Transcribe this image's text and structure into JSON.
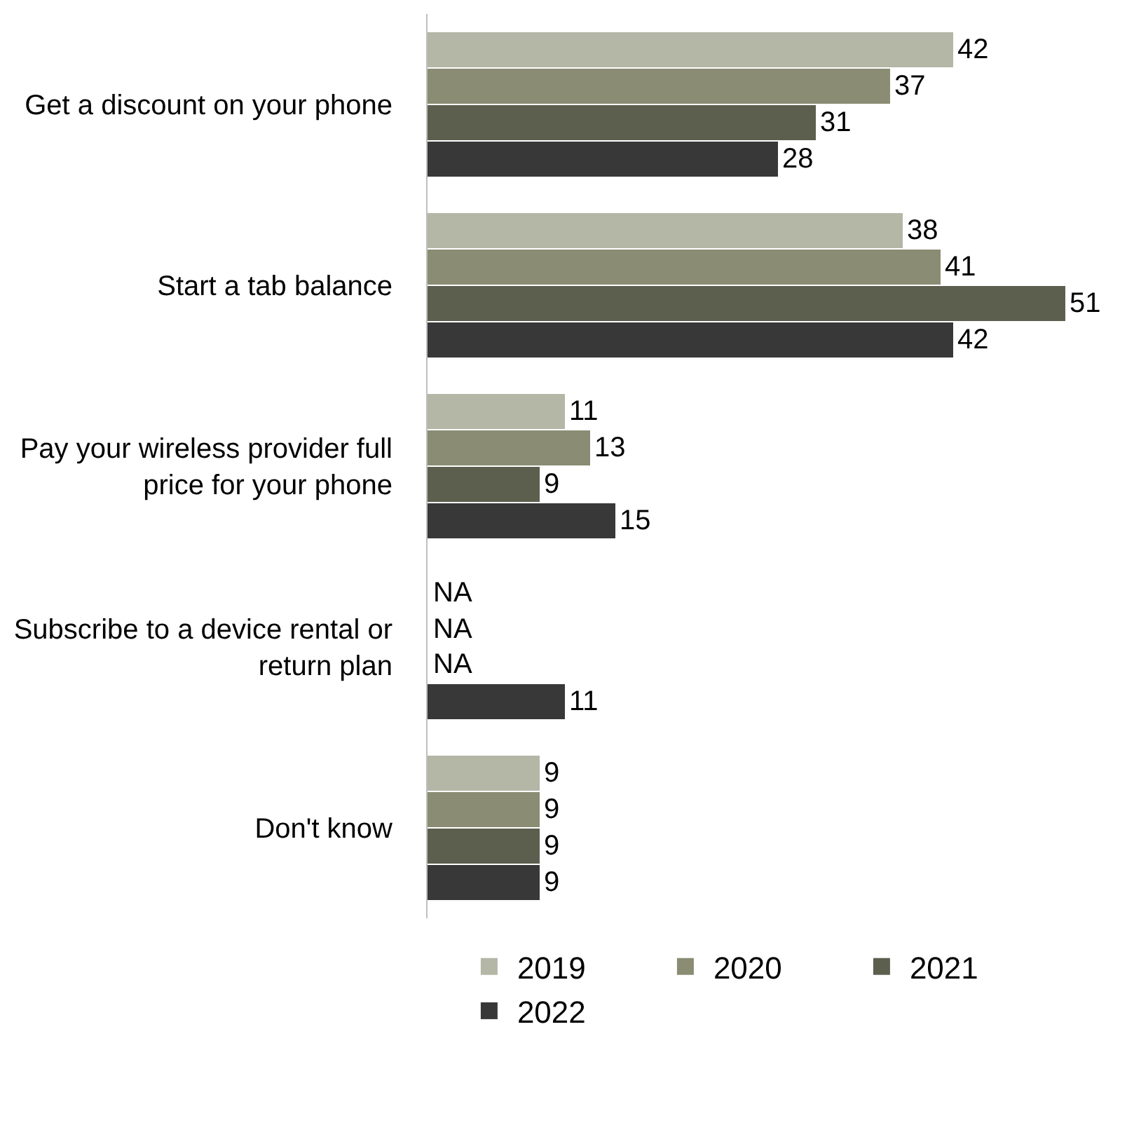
{
  "chart_data": {
    "type": "bar",
    "orientation": "horizontal",
    "categories": [
      "Get a discount on your phone",
      "Start a tab balance",
      "Pay your wireless provider full price for your phone",
      "Subscribe to a device rental or return plan",
      "Don't know"
    ],
    "series": [
      {
        "name": "2019",
        "color": "#b4b6a6",
        "values": [
          42,
          38,
          11,
          null,
          9
        ],
        "value_labels": [
          "42",
          "38",
          "11",
          "NA",
          "9"
        ]
      },
      {
        "name": "2020",
        "color": "#8a8c73",
        "values": [
          37,
          41,
          13,
          null,
          9
        ],
        "value_labels": [
          "37",
          "41",
          "13",
          "NA",
          "9"
        ]
      },
      {
        "name": "2021",
        "color": "#5c5f4e",
        "values": [
          31,
          51,
          9,
          null,
          9
        ],
        "value_labels": [
          "31",
          "51",
          "9",
          "NA",
          "9"
        ]
      },
      {
        "name": "2022",
        "color": "#383838",
        "values": [
          28,
          42,
          15,
          11,
          9
        ],
        "value_labels": [
          "28",
          "42",
          "15",
          "11",
          "9"
        ]
      }
    ],
    "legend": "bottom"
  }
}
